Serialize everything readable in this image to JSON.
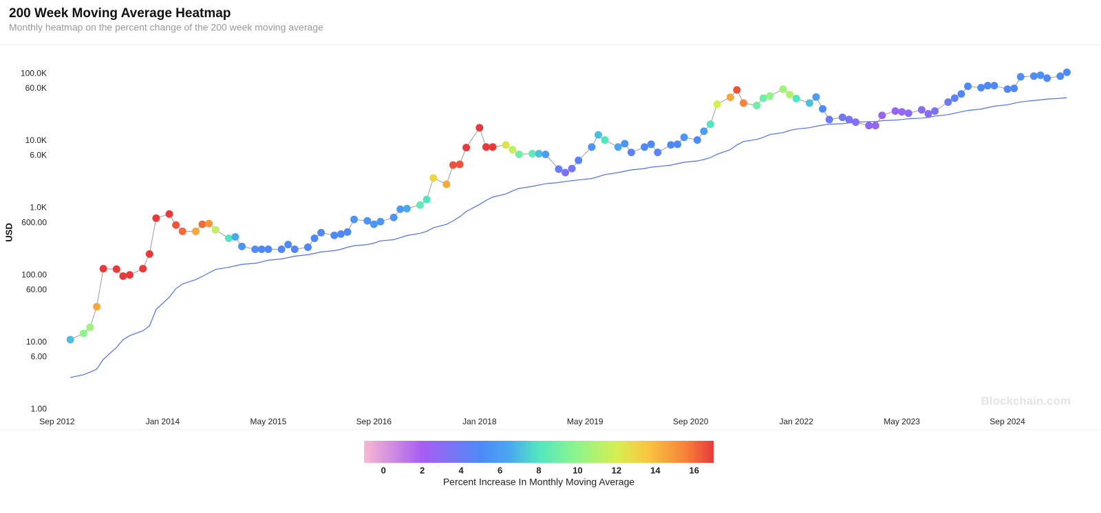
{
  "chart_data": {
    "type": "scatter",
    "title": "200 Week Moving Average Heatmap",
    "subtitle": "Monthly heatmap on the percent change of the 200 week moving average",
    "y_label": "USD",
    "watermark": "Blockchain.com",
    "log_y": true,
    "line_color": "#9a9a9a",
    "ma_color": "#4f6ef7",
    "x": [
      "2012-11",
      "2013-01",
      "2013-02",
      "2013-03",
      "2013-04",
      "2013-06",
      "2013-07",
      "2013-08",
      "2013-10",
      "2013-11",
      "2013-12",
      "2014-02",
      "2014-03",
      "2014-04",
      "2014-06",
      "2014-07",
      "2014-08",
      "2014-09",
      "2014-11",
      "2014-12",
      "2015-01",
      "2015-03",
      "2015-04",
      "2015-05",
      "2015-07",
      "2015-08",
      "2015-09",
      "2015-11",
      "2015-12",
      "2016-01",
      "2016-03",
      "2016-04",
      "2016-05",
      "2016-06",
      "2016-08",
      "2016-09",
      "2016-10",
      "2016-12",
      "2017-01",
      "2017-02",
      "2017-04",
      "2017-05",
      "2017-06",
      "2017-08",
      "2017-09",
      "2017-10",
      "2017-11",
      "2018-01",
      "2018-02",
      "2018-03",
      "2018-05",
      "2018-06",
      "2018-07",
      "2018-09",
      "2018-10",
      "2018-11",
      "2019-01",
      "2019-02",
      "2019-03",
      "2019-04",
      "2019-06",
      "2019-07",
      "2019-08",
      "2019-10",
      "2019-11",
      "2019-12",
      "2020-02",
      "2020-03",
      "2020-04",
      "2020-06",
      "2020-07",
      "2020-08",
      "2020-10",
      "2020-11",
      "2020-12",
      "2021-01",
      "2021-03",
      "2021-04",
      "2021-05",
      "2021-07",
      "2021-08",
      "2021-09",
      "2021-11",
      "2021-12",
      "2022-01",
      "2022-03",
      "2022-04",
      "2022-05",
      "2022-06",
      "2022-08",
      "2022-09",
      "2022-10",
      "2022-12",
      "2023-01",
      "2023-02",
      "2023-04",
      "2023-05",
      "2023-06",
      "2023-08",
      "2023-09",
      "2023-10",
      "2023-12",
      "2024-01",
      "2024-02",
      "2024-03",
      "2024-05",
      "2024-06",
      "2024-07",
      "2024-09",
      "2024-10",
      "2024-11",
      "2025-01",
      "2025-02",
      "2025-03",
      "2025-05",
      "2025-06"
    ],
    "values": [
      11,
      13.6,
      16.8,
      34,
      125,
      123,
      97,
      101,
      125,
      207,
      707,
      815,
      558,
      450,
      450,
      573,
      587,
      475,
      355,
      372,
      268,
      243,
      243,
      243,
      243,
      286,
      243,
      261,
      355,
      430,
      392,
      410,
      440,
      676,
      646,
      573,
      628,
      723,
      960,
      980,
      1110,
      1340,
      2800,
      2260,
      4370,
      4470,
      7940,
      15700,
      8100,
      8100,
      8700,
      7400,
      6300,
      6440,
      6440,
      6300,
      3800,
      3370,
      3870,
      5130,
      8100,
      12300,
      10300,
      8100,
      9100,
      6740,
      8100,
      8900,
      6740,
      8700,
      8900,
      11300,
      10300,
      13900,
      17700,
      35200,
      44600,
      57400,
      36600,
      33600,
      43300,
      46500,
      59000,
      49000,
      42600,
      36600,
      45000,
      29900,
      20800,
      22400,
      20800,
      19000,
      16900,
      16900,
      24000,
      27800,
      27100,
      25800,
      29000,
      25300,
      27800,
      37800,
      43300,
      50000,
      65000,
      62000,
      66500,
      66500,
      59000,
      60500,
      90000,
      92000,
      95000,
      86000,
      92000,
      105000
    ],
    "color_values": [
      7,
      10,
      10.5,
      14.5,
      17,
      17,
      17,
      17,
      17,
      17,
      17,
      17,
      16.5,
      16,
      14.5,
      16,
      15,
      11.5,
      8,
      6.5,
      5.5,
      5.2,
      5,
      4.8,
      4.8,
      5,
      4.8,
      5,
      5,
      5,
      5,
      5,
      5,
      5.5,
      5.5,
      5.5,
      5.5,
      5.5,
      5.8,
      6.5,
      8.5,
      8,
      13,
      14.5,
      16.5,
      16.5,
      17,
      17,
      17,
      17,
      12.5,
      11.5,
      9,
      8.5,
      7,
      6,
      4,
      3.5,
      3.8,
      4.5,
      5.5,
      7,
      8,
      6.5,
      5.5,
      4.5,
      5,
      5,
      4.5,
      5,
      5,
      5.5,
      5,
      6,
      8,
      12,
      14.5,
      16.5,
      15.5,
      9,
      9,
      10,
      10.5,
      11,
      8,
      7,
      6,
      5,
      4,
      3.8,
      3.5,
      3.2,
      2.8,
      2.5,
      2.5,
      2.6,
      2.8,
      3,
      3,
      3.2,
      3.5,
      4,
      4.5,
      5,
      5,
      5,
      5,
      5,
      4.8,
      5,
      5.2,
      5.2,
      5.2,
      5,
      5,
      5
    ],
    "ma_values": [
      3.0,
      3.3,
      3.6,
      4.0,
      5.6,
      8.4,
      11,
      12.6,
      14.9,
      17.6,
      31,
      47,
      63,
      74,
      86,
      96,
      108,
      122,
      131,
      138,
      145,
      150,
      158,
      167,
      175,
      183,
      192,
      202,
      211,
      222,
      232,
      243,
      261,
      274,
      286,
      301,
      324,
      338,
      362,
      390,
      420,
      450,
      508,
      573,
      646,
      740,
      890,
      1130,
      1300,
      1460,
      1620,
      1800,
      1960,
      2100,
      2200,
      2300,
      2400,
      2490,
      2550,
      2620,
      2750,
      2940,
      3150,
      3370,
      3530,
      3700,
      3870,
      4060,
      4150,
      4360,
      4580,
      4800,
      5030,
      5280,
      5650,
      6330,
      7400,
      8700,
      9800,
      10500,
      11300,
      12400,
      13300,
      14300,
      15000,
      15700,
      16500,
      17200,
      17700,
      18000,
      18500,
      19000,
      19400,
      19400,
      20000,
      20400,
      20800,
      21400,
      21800,
      22300,
      23400,
      24600,
      25800,
      27100,
      28400,
      29800,
      31300,
      32900,
      34500,
      36300,
      38000,
      40000,
      40900,
      41900,
      43000,
      44000
    ],
    "xlim": [
      "2012-09",
      "2025-07"
    ],
    "xticks": [
      {
        "value": "2012-09",
        "label": "Sep 2012"
      },
      {
        "value": "2014-01",
        "label": "Jan 2014"
      },
      {
        "value": "2015-05",
        "label": "May 2015"
      },
      {
        "value": "2016-09",
        "label": "Sep 2016"
      },
      {
        "value": "2018-01",
        "label": "Jan 2018"
      },
      {
        "value": "2019-05",
        "label": "May 2019"
      },
      {
        "value": "2020-09",
        "label": "Sep 2020"
      },
      {
        "value": "2022-01",
        "label": "Jan 2022"
      },
      {
        "value": "2023-05",
        "label": "May 2023"
      },
      {
        "value": "2024-09",
        "label": "Sep 2024"
      }
    ],
    "ylim": [
      0.8,
      150000
    ],
    "yticks": [
      {
        "value": 1,
        "label": "1.00"
      },
      {
        "value": 6,
        "label": "6.00"
      },
      {
        "value": 10,
        "label": "10.00"
      },
      {
        "value": 60,
        "label": "60.00"
      },
      {
        "value": 100,
        "label": "100.00"
      },
      {
        "value": 600,
        "label": "600.00"
      },
      {
        "value": 1000,
        "label": "1.0K"
      },
      {
        "value": 6000,
        "label": "6.0K"
      },
      {
        "value": 10000,
        "label": "10.0K"
      },
      {
        "value": 60000,
        "label": "60.0K"
      },
      {
        "value": 100000,
        "label": "100.0K"
      }
    ],
    "colorbar": {
      "label": "Percent Increase In Monthly Moving Average",
      "lim": [
        -1,
        17
      ],
      "ticks": [
        0,
        2,
        4,
        6,
        8,
        10,
        12,
        14,
        16
      ],
      "stops": [
        {
          "value": -1,
          "color": "#f7b9d2"
        },
        {
          "value": 2,
          "color": "#a75cf2"
        },
        {
          "value": 5,
          "color": "#4d8af8"
        },
        {
          "value": 6.5,
          "color": "#4aa8f0"
        },
        {
          "value": 8,
          "color": "#52e6c0"
        },
        {
          "value": 10,
          "color": "#8ff58a"
        },
        {
          "value": 12,
          "color": "#d6ee52"
        },
        {
          "value": 13.5,
          "color": "#f8c942"
        },
        {
          "value": 15.5,
          "color": "#f7843a"
        },
        {
          "value": 17,
          "color": "#e83a3a"
        }
      ]
    }
  }
}
